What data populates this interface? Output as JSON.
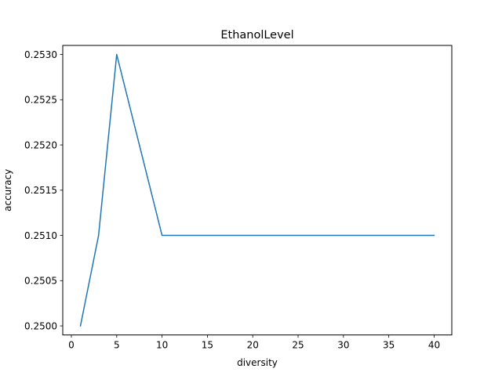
{
  "chart_data": {
    "type": "line",
    "title": "EthanolLevel",
    "xlabel": "diversity",
    "ylabel": "accuracy",
    "xlim": [
      -0.95,
      41.95
    ],
    "ylim": [
      0.2499,
      0.2531
    ],
    "xticks": [
      0,
      5,
      10,
      15,
      20,
      25,
      30,
      35,
      40
    ],
    "xtick_labels": [
      "0",
      "5",
      "10",
      "15",
      "20",
      "25",
      "30",
      "35",
      "40"
    ],
    "yticks": [
      0.25,
      0.2505,
      0.251,
      0.2515,
      0.252,
      0.2525,
      0.253
    ],
    "ytick_labels": [
      "0.2500",
      "0.2505",
      "0.2510",
      "0.2515",
      "0.2520",
      "0.2525",
      "0.2530"
    ],
    "grid": false,
    "series": [
      {
        "color": "#1f77b4",
        "x": [
          1,
          3,
          5,
          10,
          15,
          20,
          25,
          30,
          35,
          40
        ],
        "y": [
          0.25,
          0.251,
          0.253,
          0.251,
          0.251,
          0.251,
          0.251,
          0.251,
          0.251,
          0.251
        ]
      }
    ]
  }
}
